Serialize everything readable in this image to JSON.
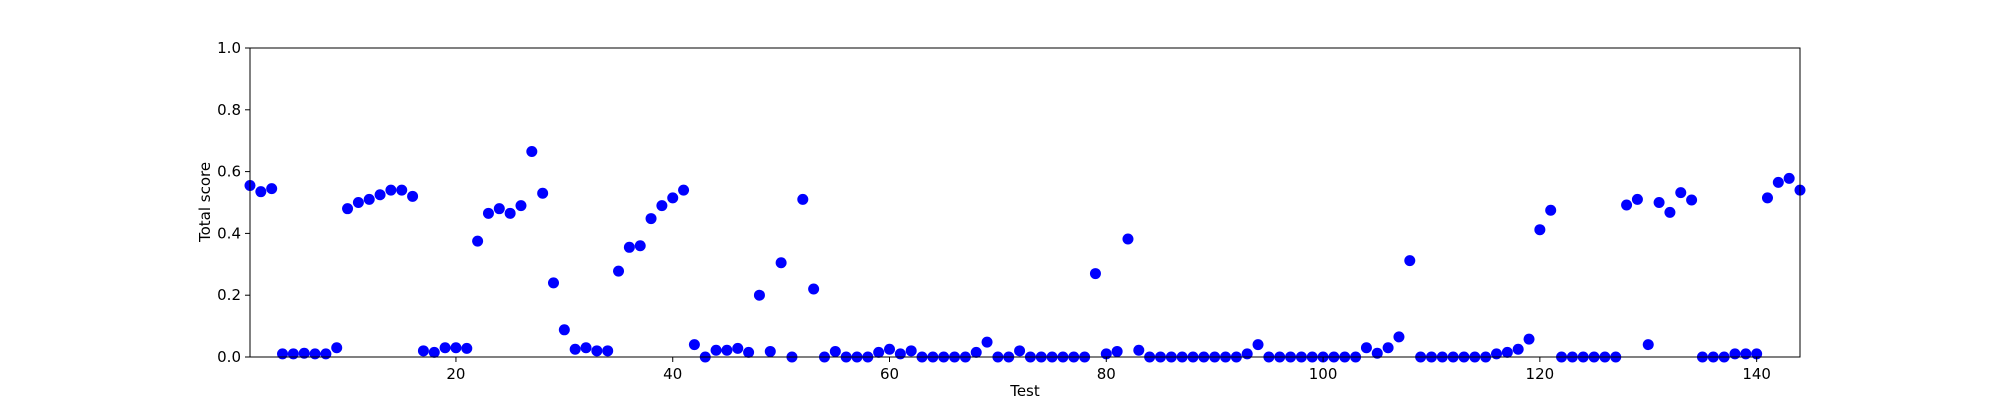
{
  "chart_data": {
    "type": "scatter",
    "title": "",
    "xlabel": "Test",
    "ylabel": "Total score",
    "xlim": [
      1,
      144
    ],
    "ylim": [
      0,
      1.0
    ],
    "x_ticks": [
      20,
      40,
      60,
      80,
      100,
      120,
      140
    ],
    "x_tick_labels": [
      "20",
      "40",
      "60",
      "80",
      "100",
      "120",
      "140"
    ],
    "y_ticks": [
      0.0,
      0.2,
      0.4,
      0.6,
      0.8,
      1.0
    ],
    "y_tick_labels": [
      "0.0",
      "0.2",
      "0.4",
      "0.6",
      "0.8",
      "1.0"
    ],
    "grid": false,
    "marker_color": "#0000ff",
    "series": [
      {
        "x": [
          1,
          2,
          3,
          4,
          5,
          6,
          7,
          8,
          9,
          10,
          11,
          12,
          13,
          14,
          15,
          16,
          17,
          18,
          19,
          20,
          21,
          22,
          23,
          24,
          25,
          26,
          27,
          28,
          29,
          30,
          31,
          32,
          33,
          34,
          35,
          36,
          37,
          38,
          39,
          40,
          41,
          42,
          43,
          44,
          45,
          46,
          47,
          48,
          49,
          50,
          51,
          52,
          53,
          54,
          55,
          56,
          57,
          58,
          59,
          60,
          61,
          62,
          63,
          64,
          65,
          66,
          67,
          68,
          69,
          70,
          71,
          72,
          73,
          74,
          75,
          76,
          77,
          78,
          79,
          80,
          81,
          82,
          83,
          84,
          85,
          86,
          87,
          88,
          89,
          90,
          91,
          92,
          93,
          94,
          95,
          96,
          97,
          98,
          99,
          100,
          101,
          102,
          103,
          104,
          105,
          106,
          107,
          108,
          109,
          110,
          111,
          112,
          113,
          114,
          115,
          116,
          117,
          118,
          119,
          120,
          121,
          122,
          123,
          124,
          125,
          126,
          127,
          128,
          129,
          130,
          131,
          132,
          133,
          134,
          135,
          136,
          137,
          138,
          139,
          140,
          141,
          142,
          143,
          144
        ],
        "y": [
          0.555,
          0.535,
          0.545,
          0.01,
          0.01,
          0.012,
          0.01,
          0.01,
          0.03,
          0.48,
          0.5,
          0.51,
          0.525,
          0.54,
          0.54,
          0.52,
          0.02,
          0.015,
          0.03,
          0.03,
          0.028,
          0.375,
          0.465,
          0.48,
          0.465,
          0.49,
          0.665,
          0.53,
          0.24,
          0.088,
          0.025,
          0.03,
          0.02,
          0.02,
          0.278,
          0.355,
          0.36,
          0.448,
          0.49,
          0.515,
          0.54,
          0.04,
          0.0,
          0.022,
          0.022,
          0.028,
          0.015,
          0.2,
          0.018,
          0.305,
          0.0,
          0.51,
          0.22,
          0.0,
          0.018,
          0.0,
          0.0,
          0.0,
          0.015,
          0.025,
          0.01,
          0.02,
          0.0,
          0.0,
          0.0,
          0.0,
          0.0,
          0.015,
          0.048,
          0.0,
          0.0,
          0.02,
          0.0,
          0.0,
          0.0,
          0.0,
          0.0,
          0.0,
          0.27,
          0.01,
          0.018,
          0.382,
          0.022,
          0.0,
          0.0,
          0.0,
          0.0,
          0.0,
          0.0,
          0.0,
          0.0,
          0.0,
          0.01,
          0.04,
          0.0,
          0.0,
          0.0,
          0.0,
          0.0,
          0.0,
          0.0,
          0.0,
          0.0,
          0.03,
          0.012,
          0.03,
          0.065,
          0.312,
          0.0,
          0.0,
          0.0,
          0.0,
          0.0,
          0.0,
          0.0,
          0.01,
          0.015,
          0.025,
          0.058,
          0.412,
          0.475,
          0.0,
          0.0,
          0.0,
          0.0,
          0.0,
          0.0,
          0.492,
          0.51,
          0.04,
          0.5,
          0.468,
          0.532,
          0.508,
          0.0,
          0.0,
          0.0,
          0.01,
          0.01,
          0.01,
          0.515,
          0.565,
          0.578,
          0.54
        ]
      }
    ]
  }
}
